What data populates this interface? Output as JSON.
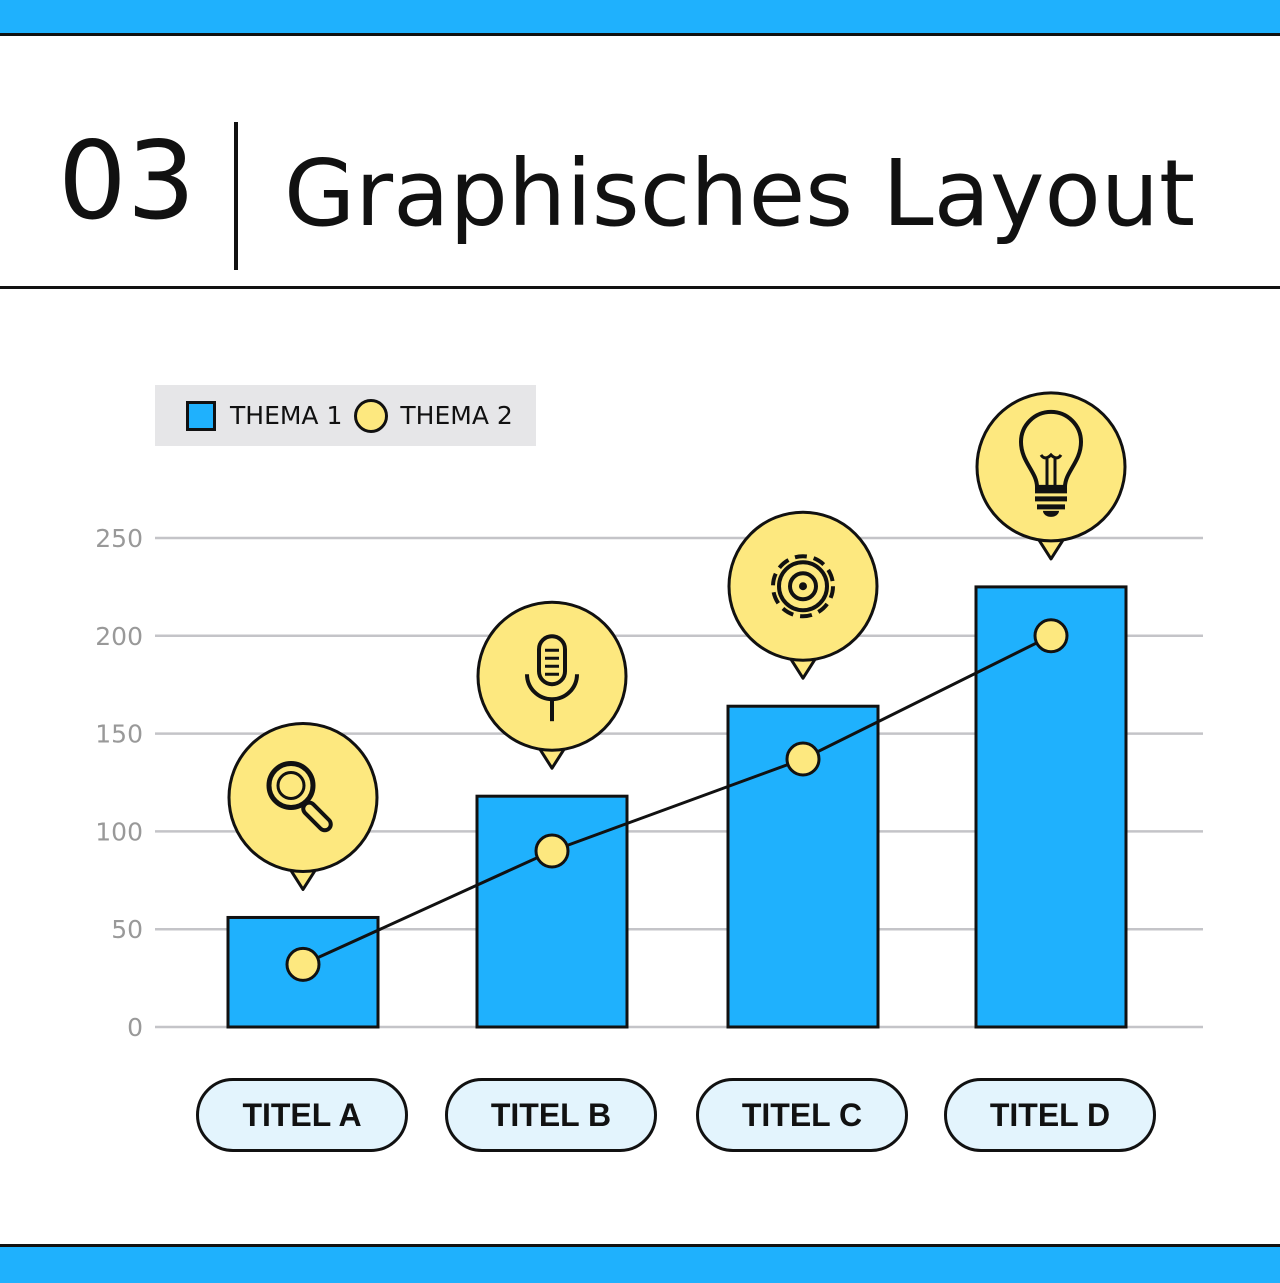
{
  "header": {
    "number": "03",
    "title": "Graphisches Layout"
  },
  "colors": {
    "bar": "#1fb1fd",
    "point": "#fde87f",
    "accent": "#1fb1fd",
    "pill": "#e3f4fd"
  },
  "chart_data": {
    "type": "bar",
    "categories": [
      "TITEL A",
      "TITEL B",
      "TITEL C",
      "TITEL D"
    ],
    "series": [
      {
        "name": "THEMA 1",
        "type": "bar",
        "values": [
          56,
          118,
          164,
          225
        ]
      },
      {
        "name": "THEMA 2",
        "type": "line",
        "values": [
          32,
          90,
          137,
          200
        ]
      }
    ],
    "icons": [
      "magnifier-icon",
      "microphone-icon",
      "gear-icon",
      "lightbulb-icon"
    ],
    "yticks": [
      "0",
      "50",
      "100",
      "150",
      "200",
      "250"
    ],
    "ylim": [
      0,
      250
    ],
    "grid": true,
    "legend": "top-left"
  }
}
